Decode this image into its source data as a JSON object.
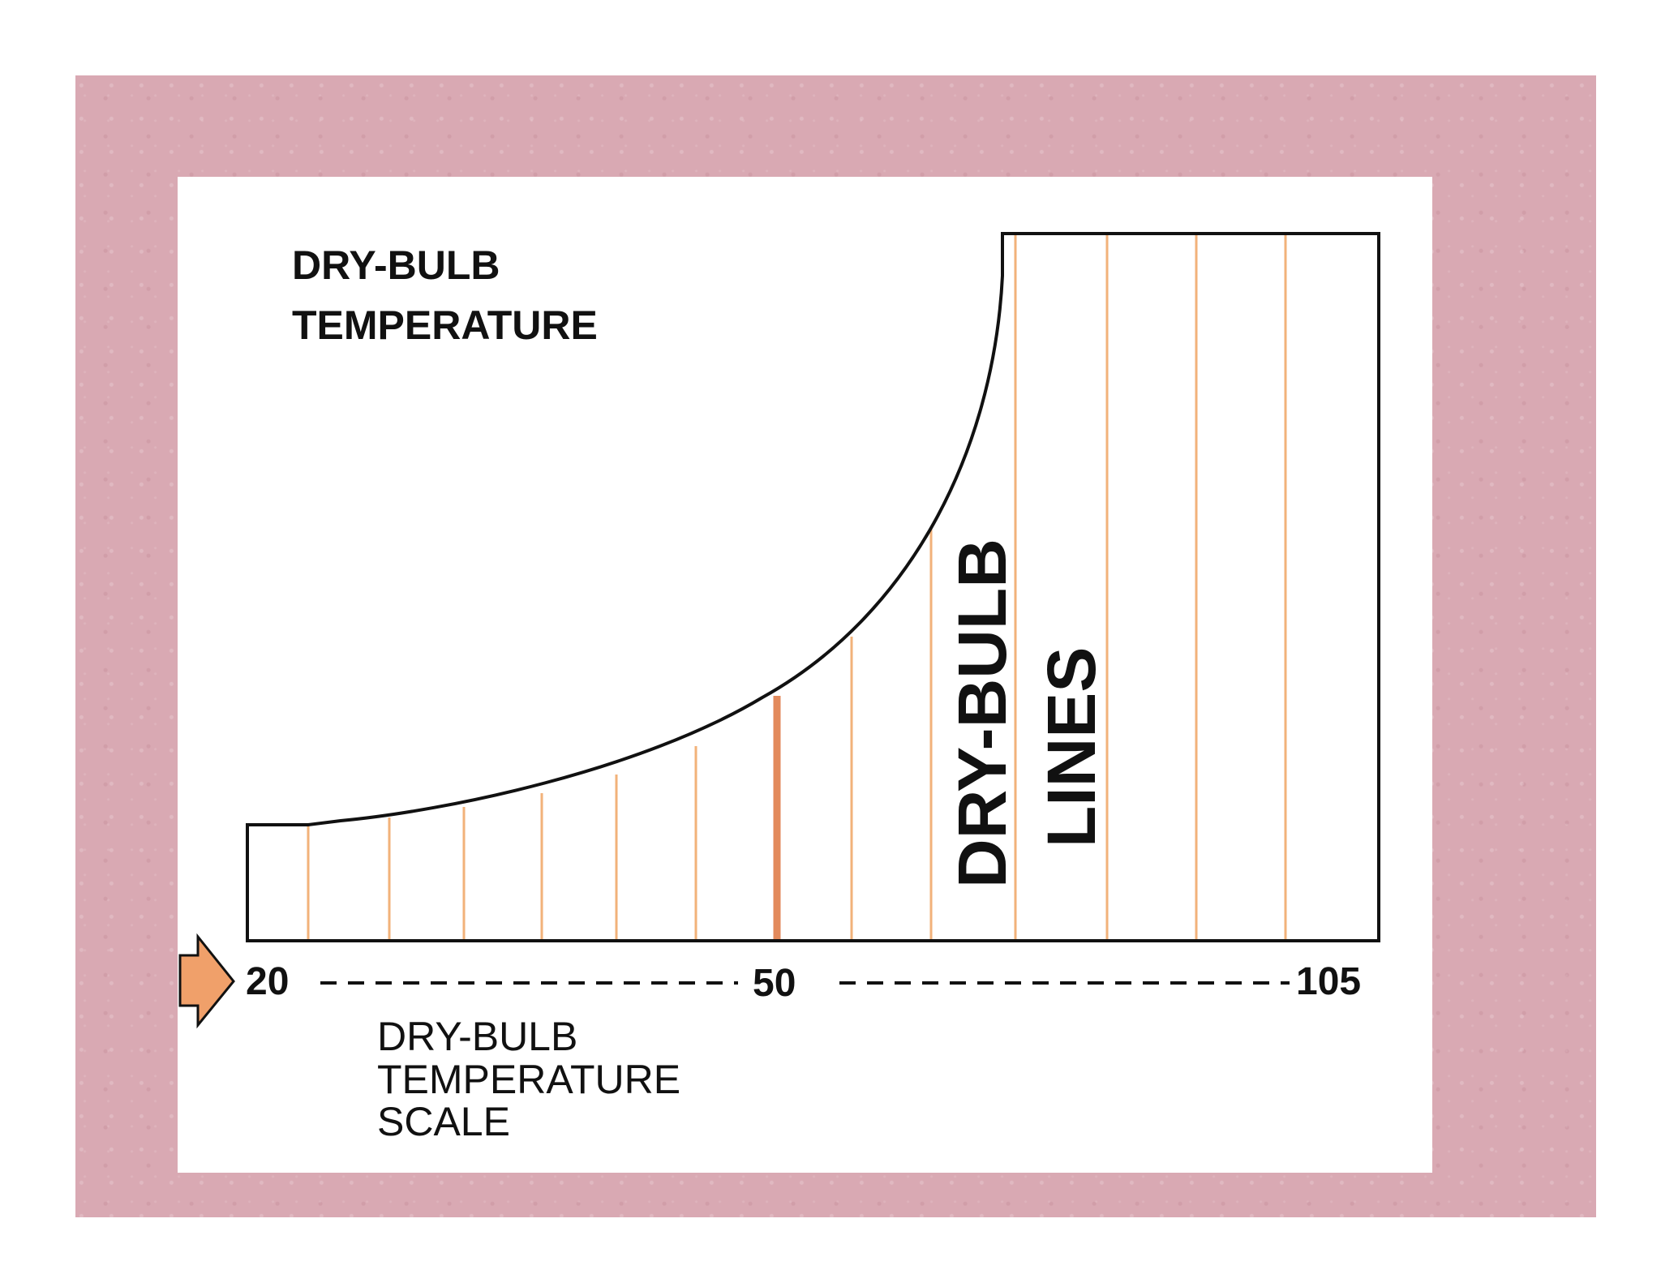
{
  "title_lines": [
    "DRY-BULB",
    "TEMPERATURE"
  ],
  "lines_label": [
    "DRY-BULB",
    "LINES"
  ],
  "scale_ticks": [
    "20",
    "50",
    "105"
  ],
  "scale_label_lines": [
    "DRY-BULB",
    "TEMPERATURE",
    "SCALE"
  ],
  "colors": {
    "background": "#d9a9b3",
    "panel": "#ffffff",
    "dry_bulb_line": "#f2b27a",
    "dry_bulb_line_highlight": "#e38a5c",
    "arrow": "#f0a06a",
    "outline": "#111111"
  },
  "icons": {
    "pointer_arrow": "arrow-right-icon"
  }
}
